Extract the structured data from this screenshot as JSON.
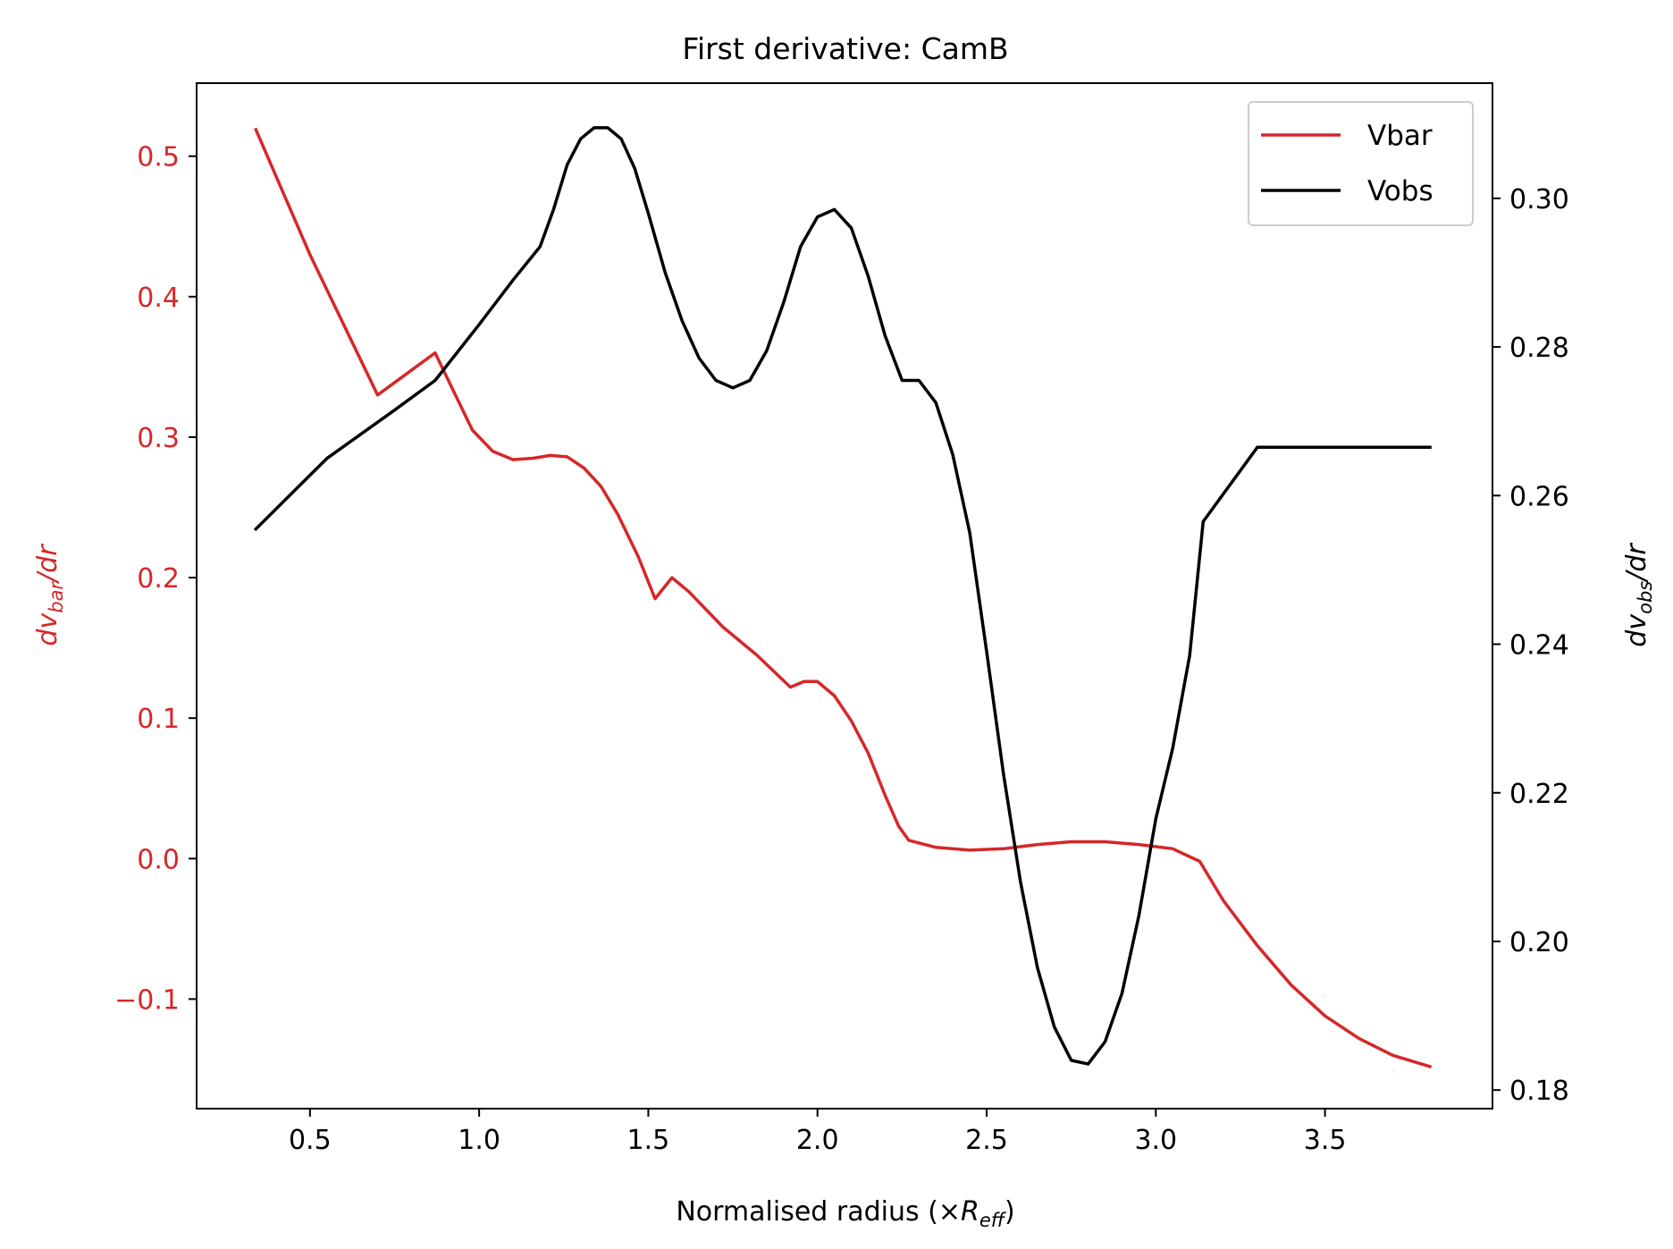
{
  "chart_data": {
    "type": "line",
    "title": "First derivative: CamB",
    "xlabel": {
      "main": "Normalised radius (×",
      "var": "R",
      "sub": "eff",
      "close": ")"
    },
    "ylabel_left": {
      "prefix": "dv",
      "sub": "bar",
      "suffix": "/dr"
    },
    "ylabel_right": {
      "prefix": "dv",
      "sub": "obs",
      "suffix": "/dr"
    },
    "xlim": [
      0.165,
      3.995
    ],
    "ylim_left": [
      -0.178,
      0.552
    ],
    "ylim_right": [
      0.1775,
      0.3155
    ],
    "x_ticks": [
      0.5,
      1.0,
      1.5,
      2.0,
      2.5,
      3.0,
      3.5
    ],
    "x_tick_labels": [
      "0.5",
      "1.0",
      "1.5",
      "2.0",
      "2.5",
      "3.0",
      "3.5"
    ],
    "y_left_ticks": [
      -0.1,
      0.0,
      0.1,
      0.2,
      0.3,
      0.4,
      0.5
    ],
    "y_left_tick_labels": [
      "−0.1",
      "0.0",
      "0.1",
      "0.2",
      "0.3",
      "0.4",
      "0.5"
    ],
    "y_right_ticks": [
      0.18,
      0.2,
      0.22,
      0.24,
      0.26,
      0.28,
      0.3
    ],
    "y_right_tick_labels": [
      "0.18",
      "0.20",
      "0.22",
      "0.24",
      "0.26",
      "0.28",
      "0.30"
    ],
    "legend_position": "top-right",
    "colors": {
      "vbar": "#d62728",
      "vobs": "#000000",
      "axis": "#000000"
    },
    "series": [
      {
        "name": "Vbar",
        "axis": "left",
        "x": [
          0.34,
          0.5,
          0.7,
          0.87,
          0.92,
          0.98,
          1.04,
          1.1,
          1.16,
          1.21,
          1.26,
          1.31,
          1.36,
          1.41,
          1.47,
          1.52,
          1.57,
          1.62,
          1.72,
          1.82,
          1.92,
          1.96,
          2.0,
          2.05,
          2.1,
          2.15,
          2.2,
          2.24,
          2.27,
          2.35,
          2.45,
          2.55,
          2.65,
          2.75,
          2.85,
          2.95,
          3.05,
          3.13,
          3.2,
          3.3,
          3.4,
          3.5,
          3.6,
          3.7,
          3.81
        ],
        "values": [
          0.519,
          0.43,
          0.33,
          0.36,
          0.335,
          0.305,
          0.29,
          0.284,
          0.285,
          0.287,
          0.286,
          0.278,
          0.265,
          0.245,
          0.215,
          0.185,
          0.2,
          0.19,
          0.165,
          0.145,
          0.122,
          0.126,
          0.126,
          0.116,
          0.098,
          0.075,
          0.045,
          0.023,
          0.013,
          0.008,
          0.006,
          0.007,
          0.01,
          0.012,
          0.012,
          0.01,
          0.007,
          -0.002,
          -0.03,
          -0.062,
          -0.09,
          -0.112,
          -0.128,
          -0.14,
          -0.148
        ]
      },
      {
        "name": "Vobs",
        "axis": "right",
        "x": [
          0.34,
          0.55,
          0.75,
          0.87,
          1.0,
          1.1,
          1.18,
          1.22,
          1.26,
          1.3,
          1.34,
          1.38,
          1.42,
          1.46,
          1.5,
          1.55,
          1.6,
          1.65,
          1.7,
          1.75,
          1.8,
          1.85,
          1.9,
          1.95,
          2.0,
          2.05,
          2.1,
          2.15,
          2.2,
          2.25,
          2.3,
          2.35,
          2.4,
          2.45,
          2.5,
          2.55,
          2.6,
          2.65,
          2.7,
          2.75,
          2.8,
          2.85,
          2.9,
          2.95,
          3.0,
          3.05,
          3.1,
          3.14,
          3.3,
          3.5,
          3.81
        ],
        "values": [
          0.2555,
          0.265,
          0.2715,
          0.2755,
          0.283,
          0.289,
          0.2935,
          0.2985,
          0.3045,
          0.308,
          0.3095,
          0.3095,
          0.308,
          0.304,
          0.298,
          0.29,
          0.2835,
          0.2785,
          0.2755,
          0.2745,
          0.2755,
          0.2795,
          0.286,
          0.2935,
          0.2975,
          0.2985,
          0.296,
          0.2895,
          0.2815,
          0.2755,
          0.2755,
          0.2725,
          0.2655,
          0.255,
          0.239,
          0.2225,
          0.208,
          0.1965,
          0.1885,
          0.184,
          0.1835,
          0.1865,
          0.193,
          0.2035,
          0.2165,
          0.226,
          0.2385,
          0.2565,
          0.2665,
          0.2665,
          0.2665
        ]
      }
    ]
  }
}
